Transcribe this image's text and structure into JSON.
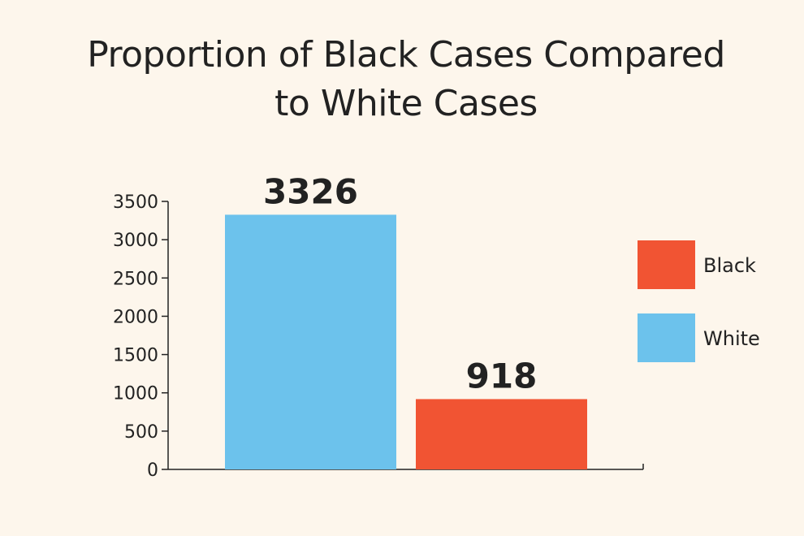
{
  "colors": {
    "background": "#fdf6ec",
    "black_series": "#f15433",
    "white_series": "#6cc2ec",
    "axis": "#222222"
  },
  "chart_data": {
    "type": "bar",
    "title": "Proportion of Black Cases Compared to White Cases",
    "xlabel": "",
    "ylabel": "",
    "categories": [
      "White",
      "Black"
    ],
    "values": [
      3326,
      918
    ],
    "bar_colors": [
      "#6cc2ec",
      "#f15433"
    ],
    "data_labels": [
      "3326",
      "918"
    ],
    "ylim": [
      0,
      3500
    ],
    "yticks": [
      0,
      500,
      1000,
      1500,
      2000,
      2500,
      3000,
      3500
    ],
    "grid": false,
    "legend": {
      "placement": "right",
      "entries": [
        {
          "label": "Black",
          "color": "#f15433"
        },
        {
          "label": "White",
          "color": "#6cc2ec"
        }
      ]
    }
  }
}
